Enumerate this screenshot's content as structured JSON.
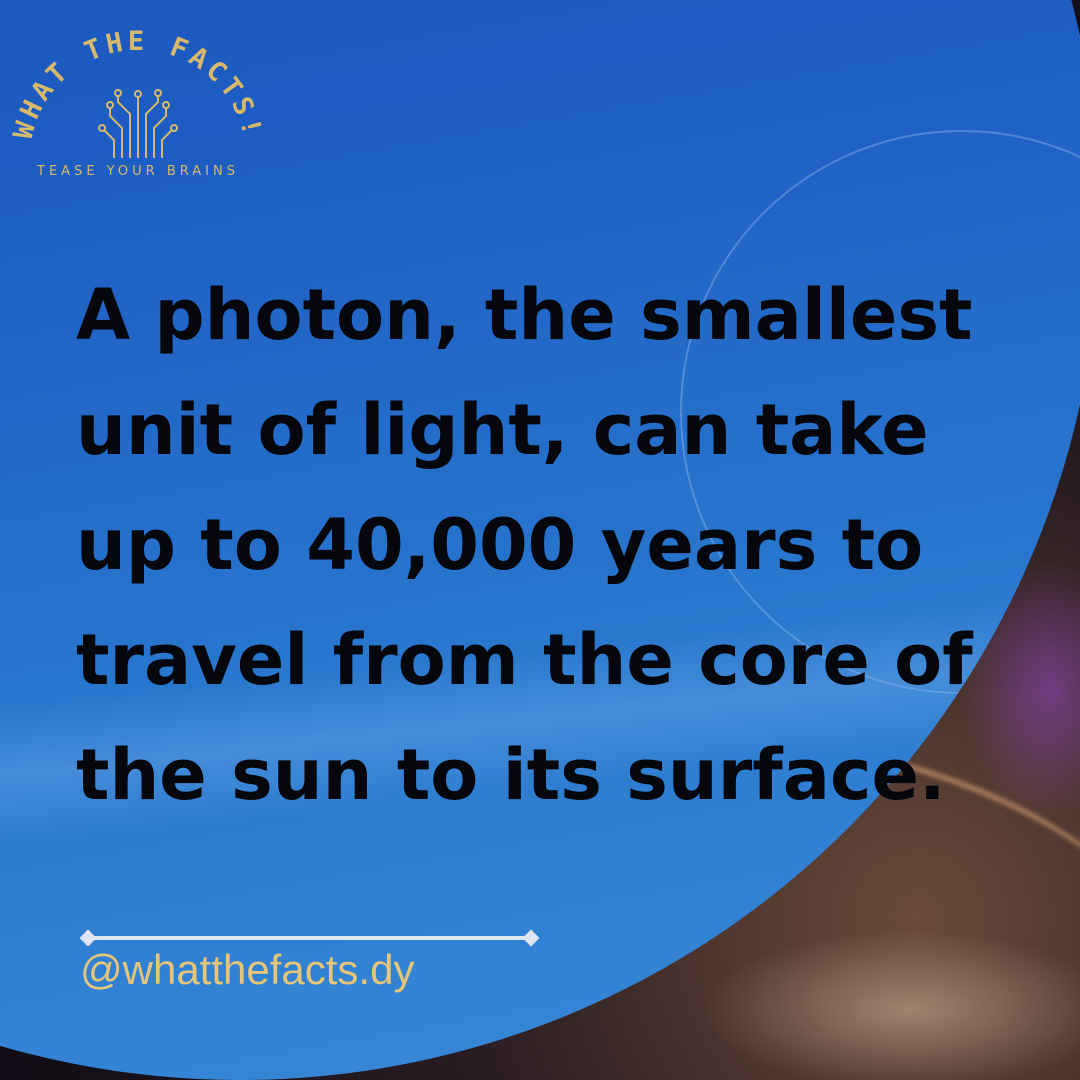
{
  "brand": {
    "title": "WHAT THE FACTS!",
    "tagline": "TEASE YOUR BRAINS",
    "icon": "circuit-brain-icon",
    "color": "#d8b96c"
  },
  "fact": {
    "lines": [
      "A photon, the smallest",
      "unit of light, can take",
      "up to 40,000 years to",
      "travel from the core of",
      "the sun to its surface."
    ]
  },
  "footer": {
    "handle": "@whatthefacts.dy"
  },
  "colors": {
    "disc": "#1d5cc2",
    "text": "#05070c",
    "accent": "#e4c57a"
  }
}
